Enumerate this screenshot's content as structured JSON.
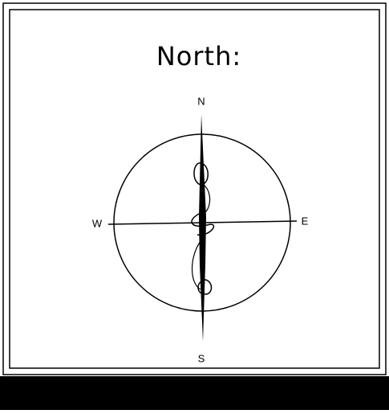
{
  "title": "North:",
  "compass": {
    "north": "N",
    "south": "S",
    "west": "W",
    "east": "E"
  }
}
